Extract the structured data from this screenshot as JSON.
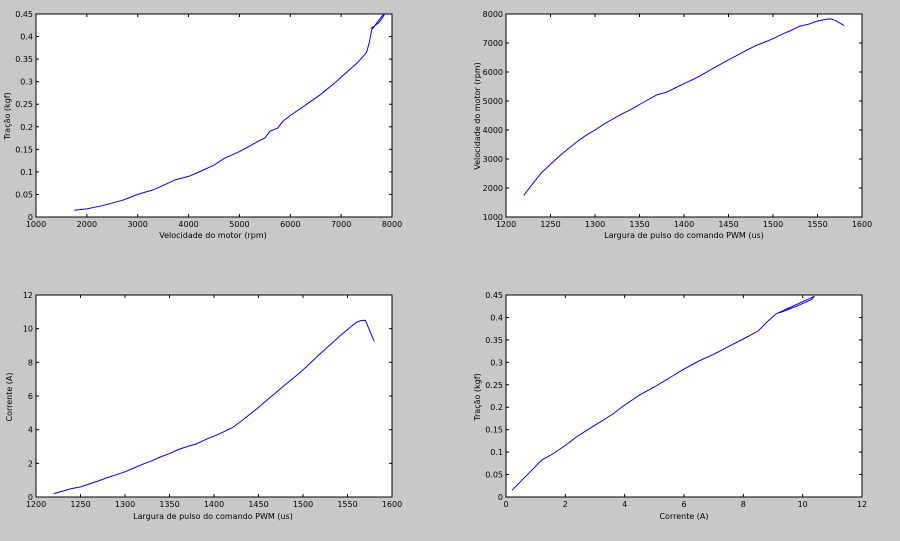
{
  "figure": {
    "background": "#c8c8c8",
    "plot_background": "#ffffff",
    "line_color": "#0000ff"
  },
  "chart_data": [
    {
      "type": "line",
      "title": "",
      "xlabel": "Velocidade do motor (rpm)",
      "ylabel": "Tração (kgf)",
      "xlim": [
        1000,
        8000
      ],
      "ylim": [
        0,
        0.45
      ],
      "xticks": [
        1000,
        2000,
        3000,
        4000,
        5000,
        6000,
        7000,
        8000
      ],
      "yticks": [
        0,
        0.05,
        0.1,
        0.15,
        0.2,
        0.25,
        0.3,
        0.35,
        0.4,
        0.45
      ],
      "xtick_labels": [
        "1000",
        "2000",
        "3000",
        "4000",
        "5000",
        "6000",
        "7000",
        "8000"
      ],
      "ytick_labels": [
        "0",
        "0.05",
        "0.1",
        "0.15",
        "0.2",
        "0.25",
        "0.3",
        "0.35",
        "0.4",
        "0.45"
      ],
      "grid": false,
      "series": [
        {
          "x": [
            1750,
            2000,
            2300,
            2700,
            3000,
            3300,
            3500,
            3750,
            4000,
            4250,
            4500,
            4700,
            5000,
            5200,
            5400,
            5500,
            5600,
            5750,
            5850,
            6000,
            6300,
            6600,
            6900,
            7100,
            7300,
            7400,
            7500,
            7550,
            7600,
            7650,
            7700,
            7750,
            7800,
            7850,
            7830,
            7750,
            7650,
            7580
          ],
          "y": [
            0.015,
            0.018,
            0.025,
            0.037,
            0.05,
            0.06,
            0.07,
            0.083,
            0.09,
            0.102,
            0.115,
            0.13,
            0.145,
            0.157,
            0.17,
            0.175,
            0.19,
            0.197,
            0.212,
            0.225,
            0.248,
            0.272,
            0.3,
            0.32,
            0.34,
            0.352,
            0.365,
            0.385,
            0.415,
            0.422,
            0.43,
            0.438,
            0.445,
            0.45,
            0.445,
            0.432,
            0.423,
            0.418
          ]
        }
      ]
    },
    {
      "type": "line",
      "title": "",
      "xlabel": "Largura de pulso do comando PWM (us)",
      "ylabel": "Velocidade do motor (rpm)",
      "xlim": [
        1200,
        1600
      ],
      "ylim": [
        1000,
        8000
      ],
      "xticks": [
        1200,
        1250,
        1300,
        1350,
        1400,
        1450,
        1500,
        1550,
        1600
      ],
      "yticks": [
        1000,
        2000,
        3000,
        4000,
        5000,
        6000,
        7000,
        8000
      ],
      "xtick_labels": [
        "1200",
        "1250",
        "1300",
        "1350",
        "1400",
        "1450",
        "1500",
        "1550",
        "1600"
      ],
      "ytick_labels": [
        "1000",
        "2000",
        "3000",
        "4000",
        "5000",
        "6000",
        "7000",
        "8000"
      ],
      "grid": false,
      "series": [
        {
          "x": [
            1220,
            1230,
            1240,
            1250,
            1260,
            1270,
            1280,
            1290,
            1300,
            1310,
            1320,
            1330,
            1340,
            1350,
            1360,
            1370,
            1380,
            1390,
            1400,
            1410,
            1420,
            1430,
            1440,
            1450,
            1460,
            1470,
            1480,
            1490,
            1500,
            1510,
            1520,
            1530,
            1540,
            1550,
            1560,
            1565,
            1570,
            1580
          ],
          "y": [
            1750,
            2150,
            2530,
            2820,
            3100,
            3360,
            3600,
            3820,
            4000,
            4200,
            4380,
            4550,
            4700,
            4880,
            5050,
            5220,
            5300,
            5450,
            5600,
            5740,
            5900,
            6080,
            6250,
            6420,
            6580,
            6750,
            6900,
            7020,
            7150,
            7300,
            7430,
            7580,
            7650,
            7760,
            7820,
            7830,
            7780,
            7600
          ]
        }
      ]
    },
    {
      "type": "line",
      "title": "",
      "xlabel": "Largura de pulso do comando PWM (us)",
      "ylabel": "Corrente (A)",
      "xlim": [
        1200,
        1600
      ],
      "ylim": [
        0,
        12
      ],
      "xticks": [
        1200,
        1250,
        1300,
        1350,
        1400,
        1450,
        1500,
        1550,
        1600
      ],
      "yticks": [
        0,
        2,
        4,
        6,
        8,
        10,
        12
      ],
      "xtick_labels": [
        "1200",
        "1250",
        "1300",
        "1350",
        "1400",
        "1450",
        "1500",
        "1550",
        "1600"
      ],
      "ytick_labels": [
        "0",
        "2",
        "4",
        "6",
        "8",
        "10",
        "12"
      ],
      "grid": false,
      "series": [
        {
          "x": [
            1220,
            1230,
            1240,
            1250,
            1260,
            1270,
            1280,
            1290,
            1300,
            1310,
            1320,
            1330,
            1340,
            1350,
            1360,
            1370,
            1380,
            1390,
            1400,
            1410,
            1420,
            1430,
            1440,
            1450,
            1460,
            1470,
            1480,
            1490,
            1500,
            1510,
            1520,
            1530,
            1540,
            1550,
            1560,
            1565,
            1570,
            1580
          ],
          "y": [
            0.2,
            0.35,
            0.5,
            0.6,
            0.78,
            0.95,
            1.15,
            1.32,
            1.5,
            1.72,
            1.95,
            2.15,
            2.38,
            2.58,
            2.82,
            3.0,
            3.15,
            3.4,
            3.62,
            3.85,
            4.1,
            4.48,
            4.9,
            5.32,
            5.78,
            6.22,
            6.68,
            7.1,
            7.55,
            8.05,
            8.55,
            9.02,
            9.5,
            9.95,
            10.38,
            10.48,
            10.5,
            9.25
          ]
        }
      ]
    },
    {
      "type": "line",
      "title": "",
      "xlabel": "Corrente (A)",
      "ylabel": "Tração (kgf)",
      "xlim": [
        0,
        12
      ],
      "ylim": [
        0,
        0.45
      ],
      "xticks": [
        0,
        2,
        4,
        6,
        8,
        10,
        12
      ],
      "yticks": [
        0,
        0.05,
        0.1,
        0.15,
        0.2,
        0.25,
        0.3,
        0.35,
        0.4,
        0.45
      ],
      "xtick_labels": [
        "0",
        "2",
        "4",
        "6",
        "8",
        "10",
        "12"
      ],
      "ytick_labels": [
        "0",
        "0.05",
        "0.1",
        "0.15",
        "0.2",
        "0.25",
        "0.3",
        "0.35",
        "0.4",
        "0.45"
      ],
      "grid": false,
      "series": [
        {
          "x": [
            0.2,
            0.5,
            0.8,
            1.2,
            1.6,
            2.0,
            2.4,
            2.8,
            3.2,
            3.6,
            4.0,
            4.5,
            5.0,
            5.5,
            6.0,
            6.5,
            7.0,
            7.5,
            8.0,
            8.5,
            8.8,
            9.1,
            9.5,
            10.0,
            10.4,
            10.3,
            9.8,
            9.2
          ],
          "y": [
            0.015,
            0.035,
            0.055,
            0.082,
            0.097,
            0.115,
            0.135,
            0.152,
            0.168,
            0.185,
            0.205,
            0.227,
            0.245,
            0.265,
            0.285,
            0.303,
            0.318,
            0.335,
            0.352,
            0.37,
            0.39,
            0.408,
            0.42,
            0.435,
            0.447,
            0.44,
            0.425,
            0.41
          ]
        }
      ]
    }
  ]
}
